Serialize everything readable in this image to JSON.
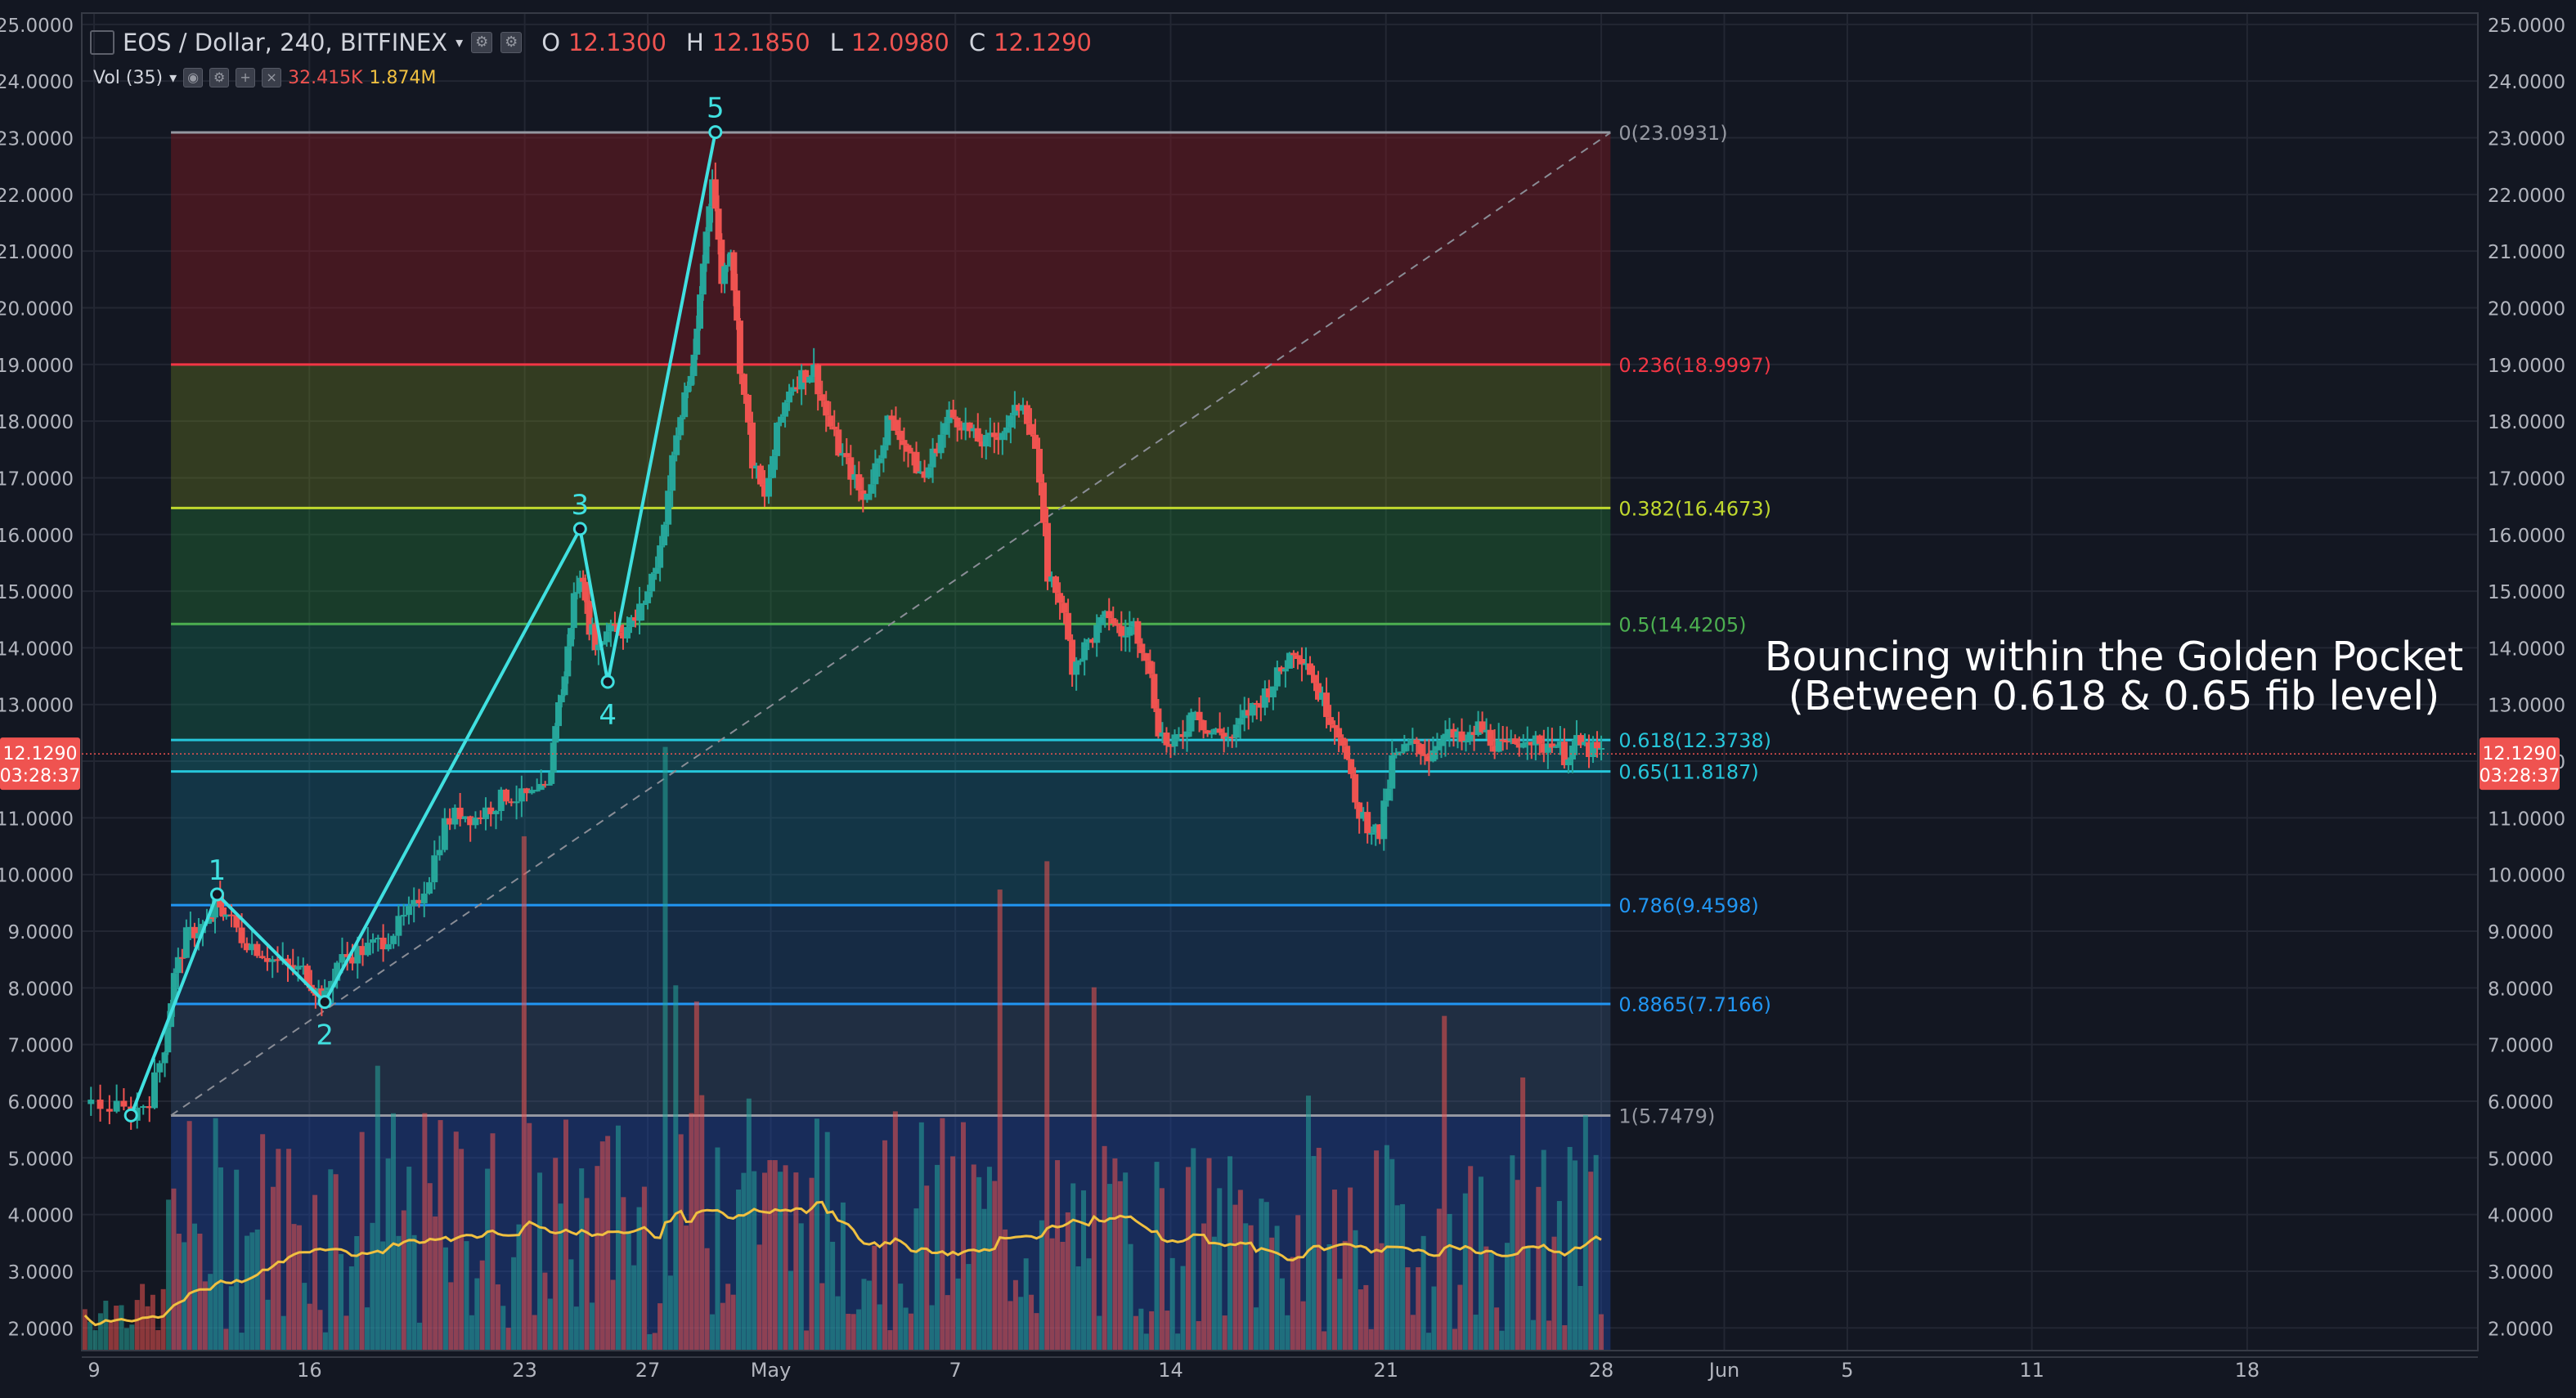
{
  "header": {
    "symbol_label": "EOS / Dollar, 240, BITFINEX",
    "open_key": "O",
    "open_val": "12.1300",
    "high_key": "H",
    "high_val": "12.1850",
    "low_key": "L",
    "low_val": "12.0980",
    "close_key": "C",
    "close_val": "12.1290",
    "volume_label": "Vol (35)",
    "volume_value": "32.415K",
    "volume_ma_value": "1.874M"
  },
  "annotation": {
    "line1": "Bouncing within the Golden Pocket",
    "line2": "(Between 0.618 & 0.65 fib level)"
  },
  "colors": {
    "background": "#131722",
    "up": "#26a69a",
    "down": "#ef5350",
    "wave": "#40e0e0",
    "volume_ma": "#f0c040",
    "price_tag": "#ef5350"
  },
  "chart_data": {
    "type": "candlestick",
    "title": "EOS / Dollar, 240, BITFINEX",
    "ylim": [
      1.6,
      25.2
    ],
    "y_ticks": [
      "25.0000",
      "24.0000",
      "23.0000",
      "22.0000",
      "21.0000",
      "20.0000",
      "19.0000",
      "18.0000",
      "17.0000",
      "16.0000",
      "15.0000",
      "14.0000",
      "13.0000",
      "12.0000",
      "11.0000",
      "10.0000",
      "9.0000",
      "8.0000",
      "7.0000",
      "6.0000",
      "5.0000",
      "4.0000",
      "3.0000",
      "2.0000"
    ],
    "x_ticks": [
      {
        "label": "9",
        "day": 9
      },
      {
        "label": "16",
        "day": 16
      },
      {
        "label": "23",
        "day": 23
      },
      {
        "label": "27",
        "day": 27
      },
      {
        "label": "May",
        "day": 31
      },
      {
        "label": "7",
        "day": 37
      },
      {
        "label": "14",
        "day": 44
      },
      {
        "label": "21",
        "day": 51
      },
      {
        "label": "28",
        "day": 58
      },
      {
        "label": "Jun",
        "day": 62
      },
      {
        "label": "5",
        "day": 66
      },
      {
        "label": "11",
        "day": 72
      },
      {
        "label": "18",
        "day": 79
      }
    ],
    "x_range_days": [
      8.6,
      86.5
    ],
    "last_price": "12.1290",
    "countdown": "03:28:37",
    "fibonacci": {
      "start_day": 11.5,
      "end_day": 58.3,
      "levels": [
        {
          "ratio": 0,
          "price": 23.0931,
          "label": "0(23.0931)",
          "color": "#9598a1"
        },
        {
          "ratio": 0.236,
          "price": 18.9997,
          "label": "0.236(18.9997)",
          "color": "#f23645"
        },
        {
          "ratio": 0.382,
          "price": 16.4673,
          "label": "0.382(16.4673)",
          "color": "#c0d82e"
        },
        {
          "ratio": 0.5,
          "price": 14.4205,
          "label": "0.5(14.4205)",
          "color": "#4caf50"
        },
        {
          "ratio": 0.618,
          "price": 12.3738,
          "label": "0.618(12.3738)",
          "color": "#26c6da"
        },
        {
          "ratio": 0.65,
          "price": 11.8187,
          "label": "0.65(11.8187)",
          "color": "#26c6da"
        },
        {
          "ratio": 0.786,
          "price": 9.4598,
          "label": "0.786(9.4598)",
          "color": "#2196f3"
        },
        {
          "ratio": 0.8865,
          "price": 7.7166,
          "label": "0.8865(7.7166)",
          "color": "#2196f3"
        },
        {
          "ratio": 1,
          "price": 5.7479,
          "label": "1(5.7479)",
          "color": "#9598a1"
        }
      ]
    },
    "elliott_wave": {
      "points": [
        {
          "label": "",
          "day": 10.2,
          "price": 5.75
        },
        {
          "label": "1",
          "day": 13.0,
          "price": 9.65
        },
        {
          "label": "2",
          "day": 16.5,
          "price": 7.75
        },
        {
          "label": "3",
          "day": 24.8,
          "price": 16.1
        },
        {
          "label": "4",
          "day": 25.7,
          "price": 13.4
        },
        {
          "label": "5",
          "day": 29.2,
          "price": 23.1
        }
      ]
    },
    "price_path": [
      [
        8.6,
        5.95
      ],
      [
        9.5,
        5.9
      ],
      [
        10.2,
        5.78
      ],
      [
        10.8,
        6.05
      ],
      [
        11.3,
        7.0
      ],
      [
        11.6,
        8.2
      ],
      [
        12.0,
        8.9
      ],
      [
        12.4,
        9.05
      ],
      [
        12.8,
        9.15
      ],
      [
        13.0,
        9.55
      ],
      [
        13.3,
        9.3
      ],
      [
        13.8,
        8.9
      ],
      [
        14.3,
        8.7
      ],
      [
        14.8,
        8.5
      ],
      [
        15.3,
        8.35
      ],
      [
        15.8,
        8.3
      ],
      [
        16.2,
        8.0
      ],
      [
        16.5,
        7.8
      ],
      [
        16.9,
        8.45
      ],
      [
        17.4,
        8.6
      ],
      [
        17.9,
        8.7
      ],
      [
        18.4,
        8.85
      ],
      [
        18.9,
        9.1
      ],
      [
        19.4,
        9.4
      ],
      [
        19.9,
        10.0
      ],
      [
        20.4,
        10.9
      ],
      [
        20.9,
        11.1
      ],
      [
        21.4,
        11.0
      ],
      [
        21.9,
        11.2
      ],
      [
        22.4,
        11.4
      ],
      [
        22.9,
        11.35
      ],
      [
        23.4,
        11.4
      ],
      [
        23.8,
        11.5
      ],
      [
        24.0,
        12.7
      ],
      [
        24.3,
        13.5
      ],
      [
        24.6,
        14.9
      ],
      [
        24.9,
        15.3
      ],
      [
        25.1,
        14.4
      ],
      [
        25.4,
        14.0
      ],
      [
        25.8,
        14.5
      ],
      [
        26.2,
        14.3
      ],
      [
        26.6,
        14.5
      ],
      [
        27.0,
        15.0
      ],
      [
        27.4,
        15.8
      ],
      [
        27.8,
        17.3
      ],
      [
        28.2,
        18.5
      ],
      [
        28.5,
        19.0
      ],
      [
        28.8,
        20.8
      ],
      [
        29.1,
        22.4
      ],
      [
        29.4,
        20.5
      ],
      [
        29.7,
        21.1
      ],
      [
        30.0,
        19.0
      ],
      [
        30.4,
        17.3
      ],
      [
        30.8,
        16.6
      ],
      [
        31.2,
        17.8
      ],
      [
        31.6,
        18.6
      ],
      [
        32.0,
        18.8
      ],
      [
        32.4,
        18.9
      ],
      [
        32.8,
        18.1
      ],
      [
        33.2,
        17.5
      ],
      [
        33.6,
        17.1
      ],
      [
        34.0,
        16.6
      ],
      [
        34.4,
        17.2
      ],
      [
        34.8,
        18.0
      ],
      [
        35.2,
        17.8
      ],
      [
        35.6,
        17.3
      ],
      [
        36.0,
        17.0
      ],
      [
        36.4,
        17.6
      ],
      [
        36.8,
        18.1
      ],
      [
        37.2,
        18.0
      ],
      [
        37.6,
        17.7
      ],
      [
        38.0,
        17.6
      ],
      [
        38.4,
        17.8
      ],
      [
        38.8,
        18.0
      ],
      [
        39.2,
        18.4
      ],
      [
        39.6,
        17.5
      ],
      [
        40.0,
        15.3
      ],
      [
        40.4,
        14.9
      ],
      [
        40.8,
        13.7
      ],
      [
        41.2,
        14.0
      ],
      [
        41.6,
        14.3
      ],
      [
        42.0,
        14.6
      ],
      [
        42.4,
        14.2
      ],
      [
        42.8,
        14.4
      ],
      [
        43.2,
        13.9
      ],
      [
        43.6,
        12.6
      ],
      [
        44.0,
        12.2
      ],
      [
        44.4,
        12.5
      ],
      [
        44.8,
        13.0
      ],
      [
        45.2,
        12.5
      ],
      [
        45.6,
        12.5
      ],
      [
        46.0,
        12.4
      ],
      [
        46.4,
        12.8
      ],
      [
        46.8,
        13.0
      ],
      [
        47.2,
        13.3
      ],
      [
        47.6,
        13.6
      ],
      [
        48.0,
        14.0
      ],
      [
        48.4,
        13.8
      ],
      [
        48.8,
        13.2
      ],
      [
        49.2,
        12.8
      ],
      [
        49.6,
        12.4
      ],
      [
        50.0,
        11.2
      ],
      [
        50.4,
        10.9
      ],
      [
        50.8,
        10.7
      ],
      [
        51.2,
        12.0
      ],
      [
        51.6,
        12.2
      ],
      [
        52.0,
        12.3
      ],
      [
        52.4,
        12.1
      ],
      [
        52.8,
        12.5
      ],
      [
        53.2,
        12.4
      ],
      [
        53.6,
        12.3
      ],
      [
        54.0,
        12.6
      ],
      [
        54.4,
        12.4
      ],
      [
        54.8,
        12.2
      ],
      [
        55.2,
        12.3
      ],
      [
        55.6,
        12.5
      ],
      [
        56.0,
        12.2
      ],
      [
        56.4,
        12.4
      ],
      [
        56.8,
        12.1
      ],
      [
        57.2,
        12.3
      ],
      [
        57.6,
        12.2
      ],
      [
        58.0,
        12.129
      ]
    ]
  }
}
